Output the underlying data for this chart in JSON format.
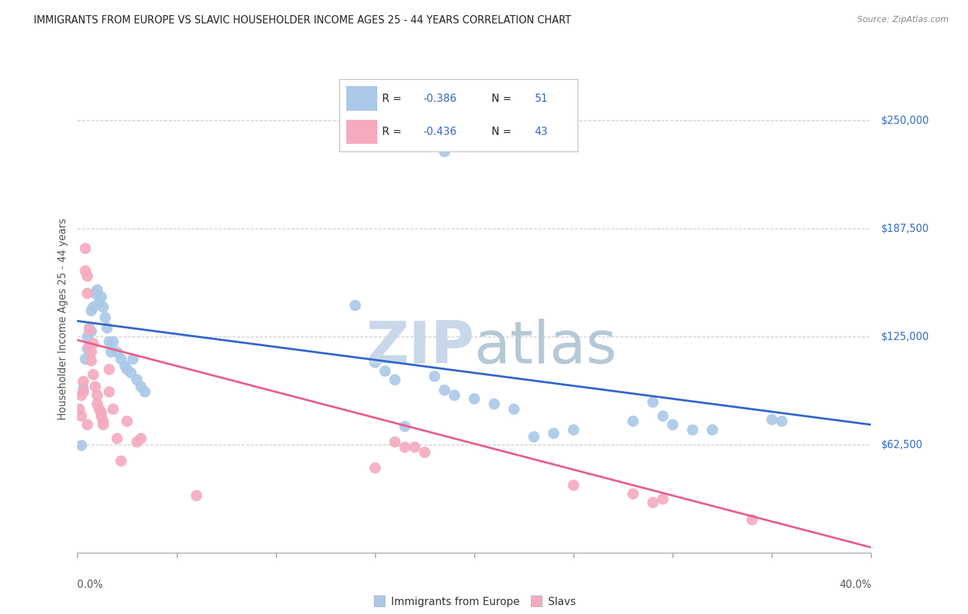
{
  "title": "IMMIGRANTS FROM EUROPE VS SLAVIC HOUSEHOLDER INCOME AGES 25 - 44 YEARS CORRELATION CHART",
  "source": "Source: ZipAtlas.com",
  "ylabel": "Householder Income Ages 25 - 44 years",
  "ytick_labels": [
    "$62,500",
    "$125,000",
    "$187,500",
    "$250,000"
  ],
  "ytick_values": [
    62500,
    125000,
    187500,
    250000
  ],
  "ymin": 0,
  "ymax": 270000,
  "xmin": 0.0,
  "xmax": 0.4,
  "legend_label1": "Immigrants from Europe",
  "legend_label2": "Slavs",
  "blue_color": "#aac8e8",
  "pink_color": "#f5aabe",
  "blue_line_color": "#3366cc",
  "pink_line_color": "#e8608a",
  "title_color": "#222222",
  "source_color": "#888888",
  "grid_color": "#cccccc",
  "background_color": "#ffffff",
  "axis_label_color": "#555555",
  "right_tick_color": "#3366cc",
  "blue_scatter": [
    [
      0.002,
      62000
    ],
    [
      0.003,
      95000
    ],
    [
      0.004,
      112000
    ],
    [
      0.005,
      118000
    ],
    [
      0.005,
      125000
    ],
    [
      0.006,
      130000
    ],
    [
      0.007,
      140000
    ],
    [
      0.007,
      128000
    ],
    [
      0.008,
      142000
    ],
    [
      0.009,
      150000
    ],
    [
      0.01,
      152000
    ],
    [
      0.011,
      145000
    ],
    [
      0.012,
      148000
    ],
    [
      0.013,
      142000
    ],
    [
      0.014,
      136000
    ],
    [
      0.015,
      130000
    ],
    [
      0.016,
      122000
    ],
    [
      0.017,
      116000
    ],
    [
      0.018,
      122000
    ],
    [
      0.02,
      116000
    ],
    [
      0.022,
      112000
    ],
    [
      0.024,
      108000
    ],
    [
      0.025,
      106000
    ],
    [
      0.027,
      104000
    ],
    [
      0.028,
      112000
    ],
    [
      0.03,
      100000
    ],
    [
      0.032,
      96000
    ],
    [
      0.034,
      93000
    ],
    [
      0.15,
      110000
    ],
    [
      0.155,
      105000
    ],
    [
      0.16,
      100000
    ],
    [
      0.18,
      102000
    ],
    [
      0.185,
      94000
    ],
    [
      0.19,
      91000
    ],
    [
      0.2,
      89000
    ],
    [
      0.21,
      86000
    ],
    [
      0.22,
      83000
    ],
    [
      0.23,
      67000
    ],
    [
      0.24,
      69000
    ],
    [
      0.25,
      71000
    ],
    [
      0.28,
      76000
    ],
    [
      0.29,
      87000
    ],
    [
      0.295,
      79000
    ],
    [
      0.3,
      74000
    ],
    [
      0.31,
      71000
    ],
    [
      0.32,
      71000
    ],
    [
      0.35,
      77000
    ],
    [
      0.355,
      76000
    ],
    [
      0.14,
      143000
    ],
    [
      0.165,
      73000
    ],
    [
      0.185,
      232000
    ]
  ],
  "pink_scatter": [
    [
      0.001,
      83000
    ],
    [
      0.002,
      79000
    ],
    [
      0.002,
      91000
    ],
    [
      0.003,
      93000
    ],
    [
      0.003,
      99000
    ],
    [
      0.004,
      163000
    ],
    [
      0.004,
      176000
    ],
    [
      0.005,
      150000
    ],
    [
      0.005,
      160000
    ],
    [
      0.005,
      74000
    ],
    [
      0.006,
      129000
    ],
    [
      0.006,
      119000
    ],
    [
      0.007,
      116000
    ],
    [
      0.007,
      111000
    ],
    [
      0.008,
      121000
    ],
    [
      0.008,
      103000
    ],
    [
      0.009,
      96000
    ],
    [
      0.01,
      91000
    ],
    [
      0.01,
      86000
    ],
    [
      0.011,
      83000
    ],
    [
      0.012,
      81000
    ],
    [
      0.012,
      79000
    ],
    [
      0.013,
      76000
    ],
    [
      0.013,
      74000
    ],
    [
      0.016,
      106000
    ],
    [
      0.016,
      93000
    ],
    [
      0.018,
      83000
    ],
    [
      0.02,
      66000
    ],
    [
      0.022,
      53000
    ],
    [
      0.025,
      76000
    ],
    [
      0.03,
      64000
    ],
    [
      0.032,
      66000
    ],
    [
      0.15,
      49000
    ],
    [
      0.16,
      64000
    ],
    [
      0.165,
      61000
    ],
    [
      0.17,
      61000
    ],
    [
      0.175,
      58000
    ],
    [
      0.25,
      39000
    ],
    [
      0.28,
      34000
    ],
    [
      0.29,
      29000
    ],
    [
      0.34,
      19000
    ],
    [
      0.295,
      31000
    ],
    [
      0.06,
      33000
    ]
  ],
  "blue_line_x": [
    0.0,
    0.4
  ],
  "blue_line_y": [
    134000,
    74000
  ],
  "pink_line_x": [
    0.0,
    0.4
  ],
  "pink_line_y": [
    123000,
    3000
  ]
}
